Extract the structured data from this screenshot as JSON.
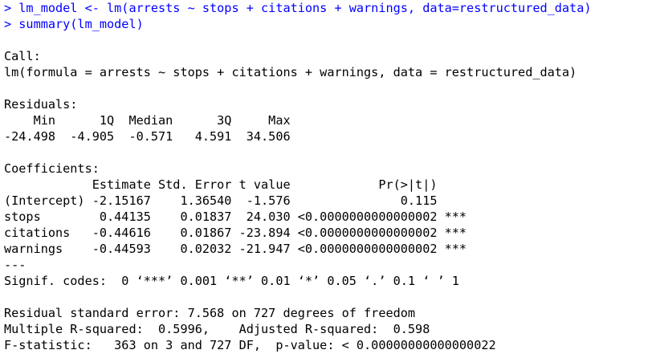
{
  "console": {
    "input_color": "#0000ff",
    "output_color": "#000000",
    "lines": [
      {
        "kind": "cmd",
        "text": "> lm_model <- lm(arrests ~ stops + citations + warnings, data=restructured_data)"
      },
      {
        "kind": "cmd",
        "text": "> summary(lm_model)"
      },
      {
        "kind": "out",
        "text": ""
      },
      {
        "kind": "out",
        "text": "Call:"
      },
      {
        "kind": "out",
        "text": "lm(formula = arrests ~ stops + citations + warnings, data = restructured_data)"
      },
      {
        "kind": "out",
        "text": ""
      },
      {
        "kind": "out",
        "text": "Residuals:"
      },
      {
        "kind": "out",
        "text": "    Min      1Q  Median      3Q     Max "
      },
      {
        "kind": "out",
        "text": "-24.498  -4.905  -0.571   4.591  34.506 "
      },
      {
        "kind": "out",
        "text": ""
      },
      {
        "kind": "out",
        "text": "Coefficients:"
      },
      {
        "kind": "out",
        "text": "            Estimate Std. Error t value            Pr(>|t|)    "
      },
      {
        "kind": "out",
        "text": "(Intercept) -2.15167    1.36540  -1.576               0.115    "
      },
      {
        "kind": "out",
        "text": "stops        0.44135    0.01837  24.030 <0.0000000000000002 ***"
      },
      {
        "kind": "out",
        "text": "citations   -0.44616    0.01867 -23.894 <0.0000000000000002 ***"
      },
      {
        "kind": "out",
        "text": "warnings    -0.44593    0.02032 -21.947 <0.0000000000000002 ***"
      },
      {
        "kind": "out",
        "text": "---"
      },
      {
        "kind": "out",
        "text": "Signif. codes:  0 ‘***’ 0.001 ‘**’ 0.01 ‘*’ 0.05 ‘.’ 0.1 ‘ ’ 1"
      },
      {
        "kind": "out",
        "text": ""
      },
      {
        "kind": "out",
        "text": "Residual standard error: 7.568 on 727 degrees of freedom"
      },
      {
        "kind": "out",
        "text": "Multiple R-squared:  0.5996,\tAdjusted R-squared:  0.598 "
      },
      {
        "kind": "out",
        "text": "F-statistic:   363 on 3 and 727 DF,  p-value: < 0.00000000000000022"
      }
    ]
  }
}
